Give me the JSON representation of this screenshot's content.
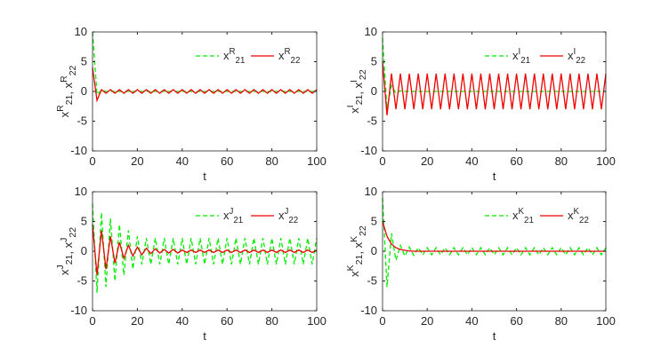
{
  "chart_data": [
    {
      "type": "line",
      "xlabel": "t",
      "ylabel": [
        {
          "base": "x",
          "sub": "21",
          "sup": "R"
        },
        {
          "base": ", x",
          "sub": "22",
          "sup": "R"
        }
      ],
      "xlim": [
        0,
        100
      ],
      "ylim": [
        -10,
        10
      ],
      "xticks": [
        0,
        20,
        40,
        60,
        80,
        100
      ],
      "yticks": [
        -10,
        -5,
        0,
        5,
        10
      ],
      "legend": "upper right",
      "x": [
        0,
        2,
        4,
        6,
        8,
        10,
        12,
        14,
        16,
        18,
        20,
        22,
        24,
        26,
        28,
        30,
        32,
        34,
        36,
        38,
        40,
        42,
        44,
        46,
        48,
        50,
        52,
        54,
        56,
        58,
        60,
        62,
        64,
        66,
        68,
        70,
        72,
        74,
        76,
        78,
        80,
        82,
        84,
        86,
        88,
        90,
        92,
        94,
        96,
        98,
        100
      ],
      "series": [
        {
          "name": "x",
          "name_sub": "21",
          "name_sup": "R",
          "color": "#00ee00",
          "dashed": true,
          "values": [
            10,
            -0.5,
            0.2,
            0,
            0,
            0,
            0,
            0,
            0,
            0,
            0,
            0,
            0,
            0,
            0,
            0,
            0,
            0,
            0,
            0,
            0,
            0,
            0,
            0,
            0,
            0,
            0,
            0,
            0,
            0,
            0,
            0,
            0,
            0,
            0,
            0,
            0,
            0,
            0,
            0,
            0,
            0,
            0,
            0,
            0,
            0,
            0,
            0,
            0,
            0,
            0
          ]
        },
        {
          "name": "x",
          "name_sub": "22",
          "name_sup": "R",
          "color": "#ee0000",
          "dashed": false,
          "values": [
            4,
            -1.5,
            0.3,
            -0.3,
            0.3,
            -0.3,
            0.3,
            -0.3,
            0.3,
            -0.3,
            0.3,
            -0.3,
            0.3,
            -0.3,
            0.3,
            -0.3,
            0.3,
            -0.3,
            0.3,
            -0.3,
            0.3,
            -0.3,
            0.3,
            -0.3,
            0.3,
            -0.3,
            0.3,
            -0.3,
            0.3,
            -0.3,
            0.3,
            -0.3,
            0.3,
            -0.3,
            0.3,
            -0.3,
            0.3,
            -0.3,
            0.3,
            -0.3,
            0.3,
            -0.3,
            0.3,
            -0.3,
            0.3,
            -0.3,
            0.3,
            -0.3,
            0.3,
            -0.3,
            0.3
          ]
        }
      ]
    },
    {
      "type": "line",
      "xlabel": "t",
      "ylabel": [
        {
          "base": "x",
          "sub": "21",
          "sup": "I"
        },
        {
          "base": ", x",
          "sub": "22",
          "sup": "I"
        }
      ],
      "xlim": [
        0,
        100
      ],
      "ylim": [
        -10,
        10
      ],
      "xticks": [
        0,
        20,
        40,
        60,
        80,
        100
      ],
      "yticks": [
        -10,
        -5,
        0,
        5,
        10
      ],
      "legend": "upper right",
      "x": [
        0,
        2,
        4,
        6,
        8,
        10,
        12,
        14,
        16,
        18,
        20,
        22,
        24,
        26,
        28,
        30,
        32,
        34,
        36,
        38,
        40,
        42,
        44,
        46,
        48,
        50,
        52,
        54,
        56,
        58,
        60,
        62,
        64,
        66,
        68,
        70,
        72,
        74,
        76,
        78,
        80,
        82,
        84,
        86,
        88,
        90,
        92,
        94,
        96,
        98,
        100
      ],
      "series": [
        {
          "name": "x",
          "name_sub": "21",
          "name_sup": "I",
          "color": "#00ee00",
          "dashed": true,
          "values": [
            9,
            -3,
            1,
            -0.3,
            0.1,
            0,
            0,
            0,
            0,
            0,
            0,
            0,
            0,
            0,
            0,
            0,
            0,
            0,
            0,
            0,
            0,
            0,
            0,
            0,
            0,
            0,
            0,
            0,
            0,
            0,
            0,
            0,
            0,
            0,
            0,
            0,
            0,
            0,
            0,
            0,
            0,
            0,
            0,
            0,
            0,
            0,
            0,
            0,
            0,
            0,
            0
          ]
        },
        {
          "name": "x",
          "name_sub": "22",
          "name_sup": "I",
          "color": "#ee0000",
          "dashed": false,
          "values": [
            5,
            -4,
            3,
            -3,
            3,
            -3,
            3,
            -3,
            3,
            -3,
            3,
            -3,
            3,
            -3,
            3,
            -3,
            3,
            -3,
            3,
            -3,
            3,
            -3,
            3,
            -3,
            3,
            -3,
            3,
            -3,
            3,
            -3,
            3,
            -3,
            3,
            -3,
            3,
            -3,
            3,
            -3,
            3,
            -3,
            3,
            -3,
            3,
            -3,
            3,
            -3,
            3,
            -3,
            3,
            -3,
            3
          ]
        }
      ]
    },
    {
      "type": "line",
      "xlabel": "t",
      "ylabel": [
        {
          "base": "x",
          "sub": "21",
          "sup": "J"
        },
        {
          "base": ", x",
          "sub": "22",
          "sup": "J"
        }
      ],
      "xlim": [
        0,
        100
      ],
      "ylim": [
        -10,
        10
      ],
      "xticks": [
        0,
        20,
        40,
        60,
        80,
        100
      ],
      "yticks": [
        -10,
        -5,
        0,
        5,
        10
      ],
      "legend": "upper right",
      "x": [
        0,
        2,
        4,
        6,
        8,
        10,
        12,
        14,
        16,
        18,
        20,
        22,
        24,
        26,
        28,
        30,
        32,
        34,
        36,
        38,
        40,
        42,
        44,
        46,
        48,
        50,
        52,
        54,
        56,
        58,
        60,
        62,
        64,
        66,
        68,
        70,
        72,
        74,
        76,
        78,
        80,
        82,
        84,
        86,
        88,
        90,
        92,
        94,
        96,
        98,
        100
      ],
      "series": [
        {
          "name": "x",
          "name_sub": "21",
          "name_sup": "J",
          "color": "#00ee00",
          "dashed": true,
          "values": [
            8,
            -7,
            6.5,
            -6,
            5.5,
            -5,
            4.5,
            -4,
            3.5,
            -3,
            2.5,
            -2.2,
            2.2,
            -2.2,
            2.2,
            -2.2,
            2.2,
            -2.2,
            2.2,
            -2.2,
            2.2,
            -2.2,
            2.2,
            -2.2,
            2.2,
            -2.2,
            2.2,
            -2.2,
            2.2,
            -2.2,
            2.2,
            -2.2,
            2.2,
            -2.2,
            2.2,
            -2.2,
            2.2,
            -2.2,
            2.2,
            -2.2,
            2.2,
            -2.2,
            2.2,
            -2.2,
            2.2,
            -2.2,
            2.2,
            -2.2,
            2.2,
            -2.2,
            2.2
          ]
        },
        {
          "name": "x",
          "name_sub": "22",
          "name_sup": "J",
          "color": "#ee0000",
          "dashed": false,
          "values": [
            4.5,
            -4,
            3.5,
            -3,
            2.5,
            -2,
            1.5,
            -1.2,
            1,
            -0.8,
            0.7,
            -0.6,
            0.5,
            -0.4,
            0.4,
            -0.3,
            0.3,
            -0.3,
            0.3,
            -0.3,
            0.2,
            -0.2,
            0.2,
            -0.2,
            0.2,
            -0.2,
            0.2,
            -0.2,
            0.2,
            -0.2,
            0.2,
            -0.2,
            0.2,
            -0.2,
            0.2,
            -0.2,
            0.2,
            -0.2,
            0.2,
            -0.2,
            0.2,
            -0.2,
            0.2,
            -0.2,
            0.2,
            -0.2,
            0.2,
            -0.2,
            0.2,
            -0.2,
            0.2
          ]
        }
      ]
    },
    {
      "type": "line",
      "xlabel": "t",
      "ylabel": [
        {
          "base": "x",
          "sub": "21",
          "sup": "K"
        },
        {
          "base": ", x",
          "sub": "22",
          "sup": "K"
        }
      ],
      "xlim": [
        0,
        100
      ],
      "ylim": [
        -10,
        10
      ],
      "xticks": [
        0,
        20,
        40,
        60,
        80,
        100
      ],
      "yticks": [
        -10,
        -5,
        0,
        5,
        10
      ],
      "legend": "upper right",
      "x": [
        0,
        2,
        4,
        6,
        8,
        10,
        12,
        14,
        16,
        18,
        20,
        22,
        24,
        26,
        28,
        30,
        32,
        34,
        36,
        38,
        40,
        42,
        44,
        46,
        48,
        50,
        52,
        54,
        56,
        58,
        60,
        62,
        64,
        66,
        68,
        70,
        72,
        74,
        76,
        78,
        80,
        82,
        84,
        86,
        88,
        90,
        92,
        94,
        96,
        98,
        100
      ],
      "series": [
        {
          "name": "x",
          "name_sub": "21",
          "name_sup": "K",
          "color": "#00ee00",
          "dashed": true,
          "values": [
            9,
            -6,
            3,
            -1.5,
            1,
            -0.8,
            0.7,
            -0.7,
            0.6,
            -0.6,
            0.6,
            -0.6,
            0.6,
            -0.6,
            0.6,
            -0.6,
            0.6,
            -0.6,
            0.6,
            -0.6,
            0.6,
            -0.6,
            0.6,
            -0.6,
            0.6,
            -0.6,
            0.6,
            -0.6,
            0.6,
            -0.6,
            0.6,
            -0.6,
            0.6,
            -0.6,
            0.6,
            -0.6,
            0.6,
            -0.6,
            0.6,
            -0.6,
            0.6,
            -0.6,
            0.6,
            -0.6,
            0.6,
            -0.6,
            0.6,
            -0.6,
            0.6,
            -0.6,
            0.6
          ]
        },
        {
          "name": "x",
          "name_sub": "22",
          "name_sup": "K",
          "color": "#ee0000",
          "dashed": false,
          "values": [
            5,
            2.5,
            1.2,
            0.6,
            0.3,
            0.15,
            0.05,
            0,
            0,
            0,
            0,
            0,
            0,
            0,
            0,
            0,
            0,
            0,
            0,
            0,
            0,
            0,
            0,
            0,
            0,
            0,
            0,
            0,
            0,
            0,
            0,
            0,
            0,
            0,
            0,
            0,
            0,
            0,
            0,
            0,
            0,
            0,
            0,
            0,
            0,
            0,
            0,
            0,
            0,
            0,
            0
          ]
        }
      ]
    }
  ]
}
